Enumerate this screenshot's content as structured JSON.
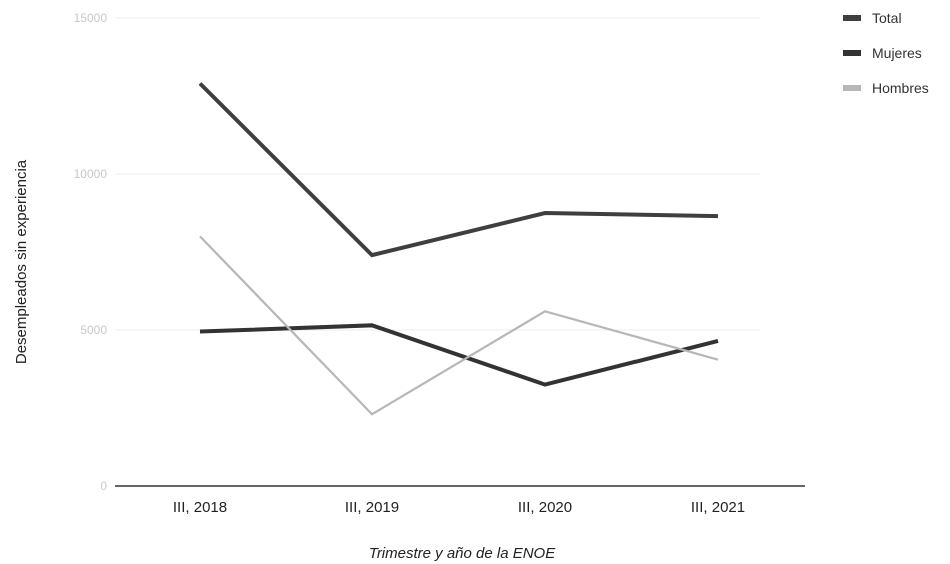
{
  "chart_data": {
    "type": "line",
    "xlabel": "Trimestre y año de la ENOE",
    "ylabel": "Desempleados sin experiencia",
    "categories": [
      "III, 2018",
      "III, 2019",
      "III, 2020",
      "III, 2021"
    ],
    "ylim": [
      0,
      15000
    ],
    "yticks": [
      "0",
      "5000",
      "10000",
      "15000"
    ],
    "grid": true,
    "legend_position": "top-right",
    "series": [
      {
        "name": "Total",
        "values": [
          12900,
          7400,
          8750,
          8650
        ],
        "color": "#3f3f3f"
      },
      {
        "name": "Mujeres",
        "values": [
          4950,
          5150,
          3250,
          4650
        ],
        "color": "#333333"
      },
      {
        "name": "Hombres",
        "values": [
          8000,
          2300,
          5600,
          4050
        ],
        "color": "#b7b7b7"
      }
    ]
  }
}
